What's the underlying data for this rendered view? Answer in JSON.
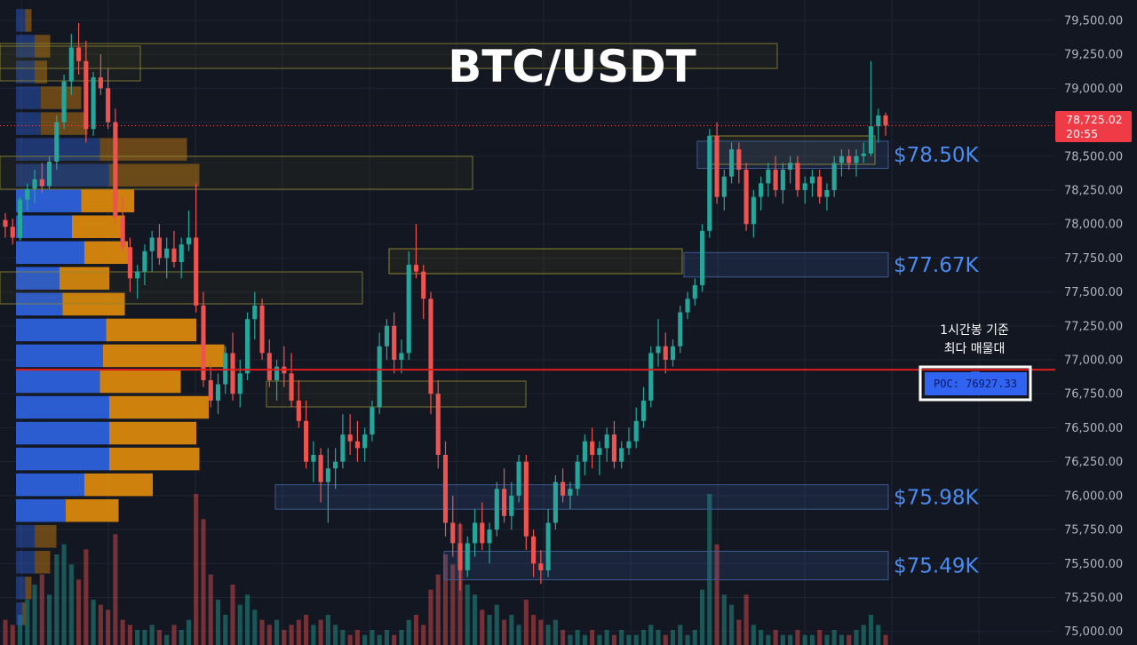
{
  "header": {
    "title": "BTC/USDT"
  },
  "colors": {
    "background": "#131722",
    "up": "#26a69a",
    "down": "#ef5350",
    "vp_buy": "#2e63e0",
    "vp_sell": "#e08b0c",
    "poc_line": "#e01c1c",
    "level_text": "#4c8bf0",
    "current_price_bg": "#ef3b46"
  },
  "annotations": {
    "poc_note_line1": "1시간봉 기준",
    "poc_note_line2": "최다 매물대",
    "poc_label": "POC: 76927.33"
  },
  "current_price": {
    "price": "78,725.02",
    "countdown": "20:55"
  },
  "chart_data": {
    "type": "candlestick",
    "title": "BTC/USDT",
    "ylim": [
      74900,
      79650
    ],
    "y_ticks": [
      "79,500.00",
      "79,250.00",
      "79,000.00",
      "78,750.00",
      "78,500.00",
      "78,250.00",
      "78,000.00",
      "77,750.00",
      "77,500.00",
      "77,250.00",
      "77,000.00",
      "76,750.00",
      "76,500.00",
      "76,250.00",
      "76,000.00",
      "75,750.00",
      "75,500.00",
      "75,250.00",
      "75,000.00"
    ],
    "grid": true,
    "poc": 76927.33,
    "current_price": 78725.02,
    "key_levels": [
      {
        "label": "$78.50K",
        "low": 78410,
        "high": 78610
      },
      {
        "label": "$77.67K",
        "low": 77610,
        "high": 77790
      },
      {
        "label": "$75.98K",
        "low": 75900,
        "high": 76080
      },
      {
        "label": "$75.49K",
        "low": 75380,
        "high": 75590
      }
    ],
    "volume_profile_bins": [
      {
        "price": 79500,
        "buy_frac": 0.03,
        "sell_frac": 0.02,
        "value_area": false
      },
      {
        "price": 79310,
        "buy_frac": 0.06,
        "sell_frac": 0.05,
        "value_area": false
      },
      {
        "price": 79120,
        "buy_frac": 0.06,
        "sell_frac": 0.04,
        "value_area": false
      },
      {
        "price": 78930,
        "buy_frac": 0.08,
        "sell_frac": 0.13,
        "value_area": false
      },
      {
        "price": 78740,
        "buy_frac": 0.08,
        "sell_frac": 0.15,
        "value_area": false
      },
      {
        "price": 78550,
        "buy_frac": 0.27,
        "sell_frac": 0.28,
        "value_area": false
      },
      {
        "price": 78360,
        "buy_frac": 0.3,
        "sell_frac": 0.29,
        "value_area": false
      },
      {
        "price": 78170,
        "buy_frac": 0.21,
        "sell_frac": 0.17,
        "value_area": true
      },
      {
        "price": 77980,
        "buy_frac": 0.18,
        "sell_frac": 0.17,
        "value_area": true
      },
      {
        "price": 77790,
        "buy_frac": 0.22,
        "sell_frac": 0.14,
        "value_area": true
      },
      {
        "price": 77600,
        "buy_frac": 0.14,
        "sell_frac": 0.16,
        "value_area": true
      },
      {
        "price": 77410,
        "buy_frac": 0.15,
        "sell_frac": 0.2,
        "value_area": true
      },
      {
        "price": 77220,
        "buy_frac": 0.29,
        "sell_frac": 0.29,
        "value_area": true
      },
      {
        "price": 77030,
        "buy_frac": 0.28,
        "sell_frac": 0.39,
        "value_area": true
      },
      {
        "price": 76840,
        "buy_frac": 0.27,
        "sell_frac": 0.26,
        "value_area": true
      },
      {
        "price": 76650,
        "buy_frac": 0.3,
        "sell_frac": 0.32,
        "value_area": true
      },
      {
        "price": 76460,
        "buy_frac": 0.3,
        "sell_frac": 0.28,
        "value_area": true
      },
      {
        "price": 76270,
        "buy_frac": 0.3,
        "sell_frac": 0.29,
        "value_area": true
      },
      {
        "price": 76080,
        "buy_frac": 0.22,
        "sell_frac": 0.22,
        "value_area": true
      },
      {
        "price": 75890,
        "buy_frac": 0.16,
        "sell_frac": 0.17,
        "value_area": true
      },
      {
        "price": 75700,
        "buy_frac": 0.06,
        "sell_frac": 0.07,
        "value_area": false
      },
      {
        "price": 75510,
        "buy_frac": 0.06,
        "sell_frac": 0.05,
        "value_area": false
      },
      {
        "price": 75320,
        "buy_frac": 0.03,
        "sell_frac": 0.02,
        "value_area": false
      },
      {
        "price": 75130,
        "buy_frac": 0.02,
        "sell_frac": 0.01,
        "value_area": false
      }
    ],
    "candles": [
      [
        78030,
        78080,
        77900,
        77980
      ],
      [
        77980,
        78040,
        77850,
        77900
      ],
      [
        77900,
        78200,
        77880,
        78180
      ],
      [
        78180,
        78300,
        78100,
        78260
      ],
      [
        78260,
        78400,
        78150,
        78330
      ],
      [
        78330,
        78450,
        78230,
        78280
      ],
      [
        78280,
        78500,
        78260,
        78460
      ],
      [
        78460,
        78800,
        78400,
        78750
      ],
      [
        78750,
        79100,
        78700,
        79050
      ],
      [
        79050,
        79400,
        78950,
        79300
      ],
      [
        79300,
        79480,
        79100,
        79200
      ],
      [
        79200,
        79350,
        78600,
        78700
      ],
      [
        78700,
        79120,
        78650,
        79080
      ],
      [
        79080,
        79250,
        78950,
        79000
      ],
      [
        79000,
        79150,
        78700,
        78750
      ],
      [
        78750,
        78850,
        78000,
        78050
      ],
      [
        78050,
        78200,
        77800,
        77830
      ],
      [
        77830,
        77900,
        77500,
        77600
      ],
      [
        77600,
        77700,
        77450,
        77650
      ],
      [
        77650,
        77850,
        77550,
        77800
      ],
      [
        77800,
        77950,
        77650,
        77900
      ],
      [
        77900,
        78000,
        77700,
        77750
      ],
      [
        77750,
        77900,
        77600,
        77820
      ],
      [
        77820,
        77950,
        77680,
        77720
      ],
      [
        77720,
        77900,
        77600,
        77850
      ],
      [
        77850,
        78100,
        77800,
        77900
      ],
      [
        77900,
        78300,
        77350,
        77400
      ],
      [
        77400,
        77500,
        76800,
        76850
      ],
      [
        76850,
        77000,
        76650,
        76700
      ],
      [
        76700,
        76900,
        76600,
        76820
      ],
      [
        76820,
        77100,
        76750,
        77050
      ],
      [
        77050,
        77200,
        76700,
        76750
      ],
      [
        76750,
        77000,
        76650,
        76900
      ],
      [
        76900,
        77350,
        76850,
        77300
      ],
      [
        77300,
        77500,
        77150,
        77400
      ],
      [
        77400,
        77450,
        77000,
        77050
      ],
      [
        77050,
        77150,
        76800,
        76850
      ],
      [
        76850,
        77000,
        76700,
        76950
      ],
      [
        76950,
        77100,
        76800,
        76900
      ],
      [
        76900,
        77050,
        76650,
        76700
      ],
      [
        76700,
        76850,
        76500,
        76550
      ],
      [
        76550,
        76700,
        76200,
        76250
      ],
      [
        76250,
        76400,
        76100,
        76300
      ],
      [
        76300,
        76350,
        75950,
        76100
      ],
      [
        76100,
        76350,
        75800,
        76200
      ],
      [
        76200,
        76350,
        76050,
        76250
      ],
      [
        76250,
        76600,
        76200,
        76450
      ],
      [
        76450,
        76600,
        76300,
        76400
      ],
      [
        76400,
        76550,
        76250,
        76350
      ],
      [
        76350,
        76500,
        76250,
        76450
      ],
      [
        76450,
        76700,
        76400,
        76650
      ],
      [
        76650,
        77200,
        76600,
        77100
      ],
      [
        77100,
        77300,
        77000,
        77250
      ],
      [
        77250,
        77350,
        76900,
        77000
      ],
      [
        77000,
        77150,
        76900,
        77050
      ],
      [
        77050,
        77800,
        77000,
        77700
      ],
      [
        77700,
        78000,
        77600,
        77650
      ],
      [
        77650,
        77700,
        77300,
        77450
      ],
      [
        77450,
        77500,
        76600,
        76750
      ],
      [
        76750,
        76850,
        76200,
        76300
      ],
      [
        76300,
        76400,
        75700,
        75800
      ],
      [
        75800,
        76000,
        75550,
        75650
      ],
      [
        75650,
        75800,
        75300,
        75450
      ],
      [
        75450,
        75700,
        75400,
        75650
      ],
      [
        75650,
        75900,
        75550,
        75800
      ],
      [
        75800,
        75950,
        75600,
        75650
      ],
      [
        75650,
        75800,
        75500,
        75750
      ],
      [
        75750,
        76100,
        75700,
        76050
      ],
      [
        76050,
        76200,
        75800,
        75850
      ],
      [
        75850,
        76100,
        75750,
        76000
      ],
      [
        76000,
        76300,
        75950,
        76250
      ],
      [
        76250,
        76300,
        75600,
        75700
      ],
      [
        75700,
        75750,
        75400,
        75500
      ],
      [
        75500,
        75600,
        75350,
        75450
      ],
      [
        75450,
        75900,
        75400,
        75800
      ],
      [
        75800,
        76150,
        75750,
        76100
      ],
      [
        76100,
        76200,
        75950,
        76000
      ],
      [
        76000,
        76100,
        75900,
        76050
      ],
      [
        76050,
        76300,
        76000,
        76250
      ],
      [
        76250,
        76450,
        76150,
        76400
      ],
      [
        76400,
        76500,
        76200,
        76300
      ],
      [
        76300,
        76400,
        76150,
        76350
      ],
      [
        76350,
        76500,
        76250,
        76450
      ],
      [
        76450,
        76550,
        76200,
        76250
      ],
      [
        76250,
        76400,
        76200,
        76350
      ],
      [
        76350,
        76500,
        76300,
        76400
      ],
      [
        76400,
        76650,
        76350,
        76550
      ],
      [
        76550,
        76800,
        76500,
        76700
      ],
      [
        76700,
        77100,
        76650,
        77050
      ],
      [
        77050,
        77300,
        76950,
        77100
      ],
      [
        77100,
        77200,
        76900,
        77000
      ],
      [
        77000,
        77150,
        76950,
        77100
      ],
      [
        77100,
        77400,
        77050,
        77350
      ],
      [
        77350,
        77500,
        77300,
        77450
      ],
      [
        77450,
        77600,
        77400,
        77550
      ],
      [
        77550,
        78000,
        77500,
        77950
      ],
      [
        77950,
        78700,
        77900,
        78650
      ],
      [
        78650,
        78750,
        78150,
        78200
      ],
      [
        78200,
        78400,
        78100,
        78350
      ],
      [
        78350,
        78600,
        78300,
        78550
      ],
      [
        78550,
        78600,
        78300,
        78400
      ],
      [
        78400,
        78450,
        77950,
        78000
      ],
      [
        78000,
        78250,
        77900,
        78200
      ],
      [
        78200,
        78350,
        78100,
        78300
      ],
      [
        78300,
        78450,
        78200,
        78400
      ],
      [
        78400,
        78500,
        78200,
        78250
      ],
      [
        78250,
        78450,
        78150,
        78400
      ],
      [
        78400,
        78500,
        78300,
        78450
      ],
      [
        78450,
        78500,
        78200,
        78250
      ],
      [
        78250,
        78350,
        78150,
        78300
      ],
      [
        78300,
        78400,
        78200,
        78350
      ],
      [
        78350,
        78400,
        78150,
        78200
      ],
      [
        78200,
        78300,
        78100,
        78250
      ],
      [
        78250,
        78500,
        78200,
        78450
      ],
      [
        78450,
        78550,
        78350,
        78500
      ],
      [
        78500,
        78550,
        78400,
        78450
      ],
      [
        78450,
        78550,
        78350,
        78500
      ],
      [
        78500,
        78600,
        78450,
        78520
      ],
      [
        78520,
        79200,
        78500,
        78720
      ],
      [
        78720,
        78850,
        78600,
        78800
      ],
      [
        78800,
        78820,
        78650,
        78725
      ]
    ],
    "volumes": [
      0.05,
      0.04,
      0.06,
      0.09,
      0.12,
      0.14,
      0.1,
      0.18,
      0.2,
      0.16,
      0.13,
      0.19,
      0.09,
      0.08,
      0.07,
      0.22,
      0.05,
      0.04,
      0.03,
      0.03,
      0.04,
      0.03,
      0.02,
      0.04,
      0.03,
      0.05,
      0.3,
      0.25,
      0.14,
      0.09,
      0.06,
      0.12,
      0.08,
      0.1,
      0.07,
      0.05,
      0.04,
      0.05,
      0.03,
      0.04,
      0.05,
      0.06,
      0.04,
      0.05,
      0.06,
      0.04,
      0.03,
      0.02,
      0.03,
      0.02,
      0.03,
      0.02,
      0.03,
      0.02,
      0.03,
      0.05,
      0.06,
      0.04,
      0.11,
      0.14,
      0.18,
      0.16,
      0.24,
      0.12,
      0.1,
      0.07,
      0.06,
      0.08,
      0.05,
      0.06,
      0.04,
      0.09,
      0.06,
      0.05,
      0.04,
      0.05,
      0.03,
      0.02,
      0.03,
      0.02,
      0.03,
      0.02,
      0.03,
      0.02,
      0.03,
      0.02,
      0.02,
      0.03,
      0.04,
      0.03,
      0.02,
      0.03,
      0.04,
      0.02,
      0.03,
      0.11,
      0.3,
      0.2,
      0.1,
      0.08,
      0.05,
      0.1,
      0.04,
      0.03,
      0.02,
      0.03,
      0.02,
      0.02,
      0.03,
      0.02,
      0.02,
      0.03,
      0.02,
      0.03,
      0.02,
      0.02,
      0.03,
      0.04,
      0.06,
      0.04,
      0.02
    ]
  }
}
